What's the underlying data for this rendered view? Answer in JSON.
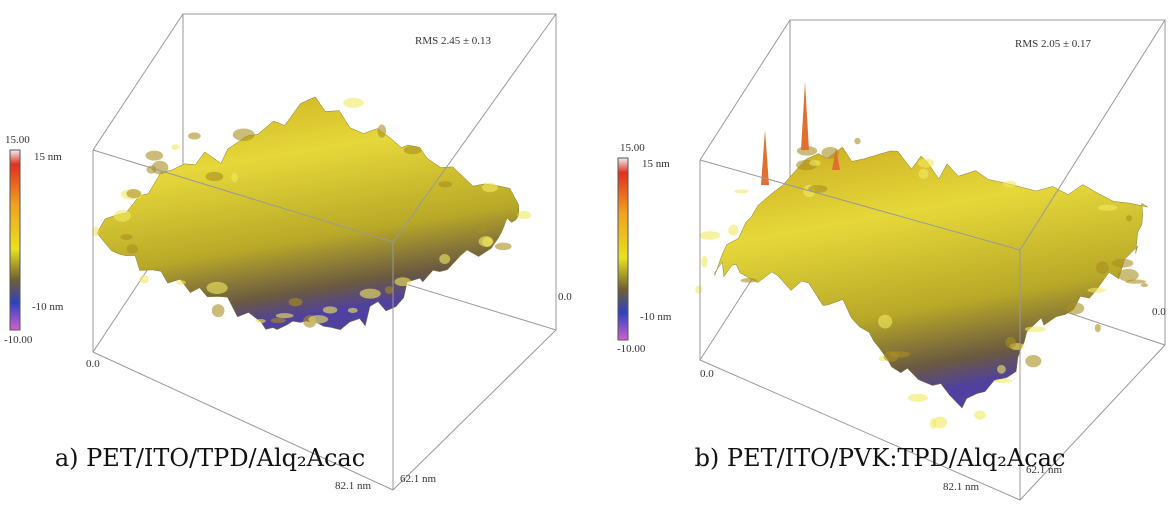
{
  "panels": [
    {
      "rms": "RMS 2.45 ± 0.13",
      "colorbar_max": "15.00",
      "colorbar_top": "15 nm",
      "colorbar_bottom": "-10 nm",
      "colorbar_min": "-10.00",
      "origin_label": "0.0",
      "y_end_label": "0.0",
      "x_length": "82.1 nm",
      "y_length": "62.1 nm",
      "caption": "a) PET/ITO/TPD/Alq₂Acac"
    },
    {
      "rms": "RMS 2.05 ± 0.17",
      "colorbar_max": "15.00",
      "colorbar_top": "15 nm",
      "colorbar_bottom": "-10 nm",
      "colorbar_min": "-10.00",
      "origin_label": "0.0",
      "y_end_label": "0.0",
      "x_length": "82.1 nm",
      "y_length": "62.1 nm",
      "caption": "b) PET/ITO/PVK:TPD/Alq₂Acac"
    }
  ]
}
